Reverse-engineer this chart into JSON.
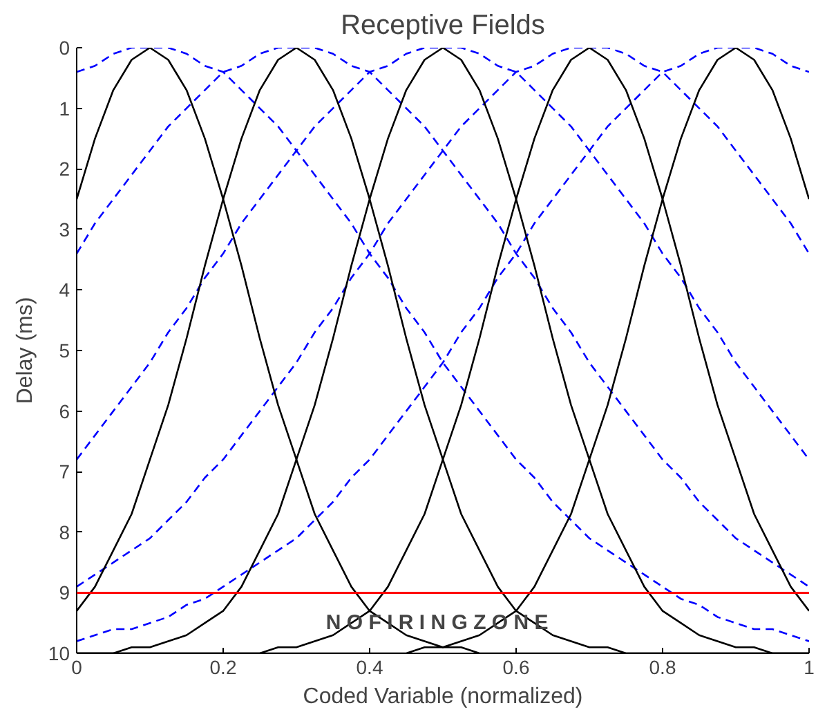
{
  "chart_data": {
    "type": "line",
    "title": "Receptive Fields",
    "xlabel": "Coded Variable (normalized)",
    "ylabel": "Delay (ms)",
    "x": [
      0,
      0.025,
      0.05,
      0.075,
      0.1,
      0.125,
      0.15,
      0.175,
      0.2,
      0.225,
      0.25,
      0.275,
      0.3,
      0.325,
      0.35,
      0.375,
      0.4,
      0.425,
      0.45,
      0.475,
      0.5,
      0.525,
      0.55,
      0.575,
      0.6,
      0.625,
      0.65,
      0.675,
      0.7,
      0.725,
      0.75,
      0.775,
      0.8,
      0.825,
      0.85,
      0.875,
      0.9,
      0.925,
      0.95,
      0.975,
      1
    ],
    "series": [
      {
        "color": "#0000ff",
        "line_style": "dashed",
        "values": [
          0.4,
          0.3,
          0.1,
          0,
          0,
          0,
          0.1,
          0.3,
          0.4,
          0.7,
          1,
          1.3,
          1.7,
          2.1,
          2.5,
          2.9,
          3.4,
          3.8,
          4.3,
          4.7,
          5.2,
          5.6,
          6,
          6.4,
          6.8,
          7.1,
          7.5,
          7.8,
          8.1,
          8.3,
          8.5,
          8.7,
          8.9,
          9.1,
          9.2,
          9.4,
          9.5,
          9.6,
          9.6,
          9.7,
          9.8
        ]
      },
      {
        "color": "#0000ff",
        "line_style": "dashed",
        "values": [
          3.4,
          2.9,
          2.5,
          2.1,
          1.7,
          1.3,
          1,
          0.7,
          0.4,
          0.3,
          0.1,
          0,
          0,
          0,
          0.1,
          0.3,
          0.4,
          0.7,
          1,
          1.3,
          1.7,
          2.1,
          2.5,
          2.9,
          3.4,
          3.8,
          4.3,
          4.7,
          5.2,
          5.6,
          6,
          6.4,
          6.8,
          7.1,
          7.5,
          7.8,
          8.1,
          8.3,
          8.5,
          8.7,
          8.9
        ]
      },
      {
        "color": "#0000ff",
        "line_style": "dashed",
        "values": [
          6.8,
          6.4,
          6,
          5.6,
          5.2,
          4.7,
          4.3,
          3.8,
          3.4,
          2.9,
          2.5,
          2.1,
          1.7,
          1.3,
          1,
          0.7,
          0.4,
          0.3,
          0.1,
          0,
          0,
          0,
          0.1,
          0.3,
          0.4,
          0.7,
          1,
          1.3,
          1.7,
          2.1,
          2.5,
          2.9,
          3.4,
          3.8,
          4.3,
          4.7,
          5.2,
          5.6,
          6,
          6.4,
          6.8
        ]
      },
      {
        "color": "#0000ff",
        "line_style": "dashed",
        "values": [
          8.9,
          8.7,
          8.5,
          8.3,
          8.1,
          7.8,
          7.5,
          7.1,
          6.8,
          6.4,
          6,
          5.6,
          5.2,
          4.7,
          4.3,
          3.8,
          3.4,
          2.9,
          2.5,
          2.1,
          1.7,
          1.3,
          1,
          0.7,
          0.4,
          0.3,
          0.1,
          0,
          0,
          0,
          0.1,
          0.3,
          0.4,
          0.7,
          1,
          1.3,
          1.7,
          2.1,
          2.5,
          2.9,
          3.4
        ]
      },
      {
        "color": "#0000ff",
        "line_style": "dashed",
        "values": [
          9.8,
          9.7,
          9.6,
          9.6,
          9.5,
          9.4,
          9.2,
          9.1,
          8.9,
          8.7,
          8.5,
          8.3,
          8.1,
          7.8,
          7.5,
          7.1,
          6.8,
          6.4,
          6,
          5.6,
          5.2,
          4.7,
          4.3,
          3.8,
          3.4,
          2.9,
          2.5,
          2.1,
          1.7,
          1.3,
          1,
          0.7,
          0.4,
          0.3,
          0.1,
          0,
          0,
          0,
          0.1,
          0.3,
          0.4
        ]
      },
      {
        "color": "#000000",
        "line_style": "solid",
        "values": [
          2.5,
          1.5,
          0.7,
          0.2,
          0,
          0.2,
          0.7,
          1.5,
          2.5,
          3.6,
          4.8,
          5.9,
          6.8,
          7.7,
          8.3,
          8.9,
          9.3,
          9.5,
          9.7,
          9.8,
          9.9,
          9.9,
          10,
          10,
          10,
          10,
          10,
          10,
          10,
          10,
          10,
          10,
          10,
          10,
          10,
          10,
          10,
          10,
          10,
          10,
          10
        ]
      },
      {
        "color": "#000000",
        "line_style": "solid",
        "values": [
          9.3,
          8.9,
          8.3,
          7.7,
          6.8,
          5.9,
          4.8,
          3.6,
          2.5,
          1.5,
          0.7,
          0.2,
          0,
          0.2,
          0.7,
          1.5,
          2.5,
          3.6,
          4.8,
          5.9,
          6.8,
          7.7,
          8.3,
          8.9,
          9.3,
          9.5,
          9.7,
          9.8,
          9.9,
          9.9,
          10,
          10,
          10,
          10,
          10,
          10,
          10,
          10,
          10,
          10,
          10
        ]
      },
      {
        "color": "#000000",
        "line_style": "solid",
        "values": [
          10,
          10,
          10,
          9.9,
          9.9,
          9.8,
          9.7,
          9.5,
          9.3,
          8.9,
          8.3,
          7.7,
          6.8,
          5.9,
          4.8,
          3.6,
          2.5,
          1.5,
          0.7,
          0.2,
          0,
          0.2,
          0.7,
          1.5,
          2.5,
          3.6,
          4.8,
          5.9,
          6.8,
          7.7,
          8.3,
          8.9,
          9.3,
          9.5,
          9.7,
          9.8,
          9.9,
          9.9,
          10,
          10,
          10
        ]
      },
      {
        "color": "#000000",
        "line_style": "solid",
        "values": [
          10,
          10,
          10,
          10,
          10,
          10,
          10,
          10,
          10,
          10,
          10,
          9.9,
          9.9,
          9.8,
          9.7,
          9.5,
          9.3,
          8.9,
          8.3,
          7.7,
          6.8,
          5.9,
          4.8,
          3.6,
          2.5,
          1.5,
          0.7,
          0.2,
          0,
          0.2,
          0.7,
          1.5,
          2.5,
          3.6,
          4.8,
          5.9,
          6.8,
          7.7,
          8.3,
          8.9,
          9.3
        ]
      },
      {
        "color": "#000000",
        "line_style": "solid",
        "values": [
          10,
          10,
          10,
          10,
          10,
          10,
          10,
          10,
          10,
          10,
          10,
          10,
          10,
          10,
          10,
          10,
          10,
          10,
          10,
          9.9,
          9.9,
          9.8,
          9.7,
          9.5,
          9.3,
          8.9,
          8.3,
          7.7,
          6.8,
          5.9,
          4.8,
          3.6,
          2.5,
          1.5,
          0.7,
          0.2,
          0,
          0.2,
          0.7,
          1.5,
          2.5
        ]
      }
    ],
    "ref_lines": [
      {
        "axis": "y",
        "value": 9,
        "color": "#ff0000",
        "line_style": "solid"
      }
    ],
    "annotations": [
      "N O  F I R I N G  Z O N E"
    ],
    "xlim": [
      0,
      1
    ],
    "ylim": [
      10,
      0
    ],
    "xticks": [
      0,
      0.2,
      0.4,
      0.6,
      0.8,
      1
    ],
    "yticks": [
      0,
      1,
      2,
      3,
      4,
      5,
      6,
      7,
      8,
      9,
      10
    ],
    "grid": false,
    "marker": "none"
  }
}
